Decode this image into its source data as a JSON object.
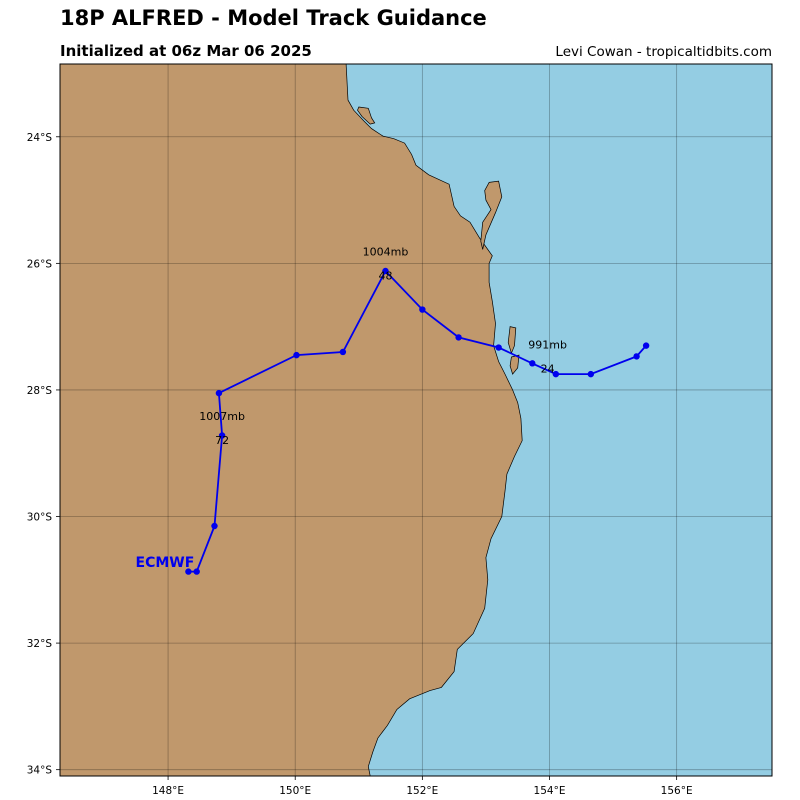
{
  "header": {
    "title": "18P ALFRED - Model Track Guidance",
    "subtitle": "Initialized at 06z Mar 06 2025",
    "credit": "Levi Cowan - tropicaltidbits.com"
  },
  "map": {
    "lon_range": [
      146.3,
      157.5
    ],
    "lat_range": [
      -34.1,
      -22.85
    ],
    "land_color": "#C0986C",
    "ocean_color": "#94CDE3",
    "lon_ticks": [
      {
        "value": 148,
        "label": "148°E"
      },
      {
        "value": 150,
        "label": "150°E"
      },
      {
        "value": 152,
        "label": "152°E"
      },
      {
        "value": 154,
        "label": "154°E"
      },
      {
        "value": 156,
        "label": "156°E"
      }
    ],
    "lat_ticks": [
      {
        "value": -24,
        "label": "24°S"
      },
      {
        "value": -26,
        "label": "26°S"
      },
      {
        "value": -28,
        "label": "28°S"
      },
      {
        "value": -30,
        "label": "30°S"
      },
      {
        "value": -32,
        "label": "32°S"
      },
      {
        "value": -34,
        "label": "34°S"
      }
    ],
    "coastline": [
      [
        150.8,
        -22.85
      ],
      [
        150.83,
        -23.42
      ],
      [
        150.92,
        -23.58
      ],
      [
        151.08,
        -23.75
      ],
      [
        151.2,
        -23.87
      ],
      [
        151.38,
        -23.99
      ],
      [
        151.55,
        -24.03
      ],
      [
        151.72,
        -24.1
      ],
      [
        151.83,
        -24.28
      ],
      [
        151.9,
        -24.45
      ],
      [
        152.1,
        -24.6
      ],
      [
        152.42,
        -24.75
      ],
      [
        152.5,
        -25.1
      ],
      [
        152.6,
        -25.25
      ],
      [
        152.75,
        -25.35
      ],
      [
        152.9,
        -25.6
      ],
      [
        153.1,
        -25.88
      ],
      [
        153.05,
        -26.0
      ],
      [
        153.05,
        -26.3
      ],
      [
        153.1,
        -26.6
      ],
      [
        153.15,
        -26.95
      ],
      [
        153.12,
        -27.3
      ],
      [
        153.2,
        -27.55
      ],
      [
        153.3,
        -27.75
      ],
      [
        153.42,
        -28.0
      ],
      [
        153.5,
        -28.2
      ],
      [
        153.55,
        -28.45
      ],
      [
        153.57,
        -28.8
      ],
      [
        153.45,
        -29.05
      ],
      [
        153.33,
        -29.33
      ],
      [
        153.3,
        -29.6
      ],
      [
        153.25,
        -30.0
      ],
      [
        153.08,
        -30.35
      ],
      [
        153.0,
        -30.65
      ],
      [
        153.03,
        -31.0
      ],
      [
        152.98,
        -31.45
      ],
      [
        152.8,
        -31.85
      ],
      [
        152.55,
        -32.1
      ],
      [
        152.5,
        -32.45
      ],
      [
        152.3,
        -32.7
      ],
      [
        152.12,
        -32.75
      ],
      [
        151.8,
        -32.88
      ],
      [
        151.6,
        -33.05
      ],
      [
        151.45,
        -33.3
      ],
      [
        151.3,
        -33.5
      ],
      [
        151.22,
        -33.72
      ],
      [
        151.15,
        -33.95
      ],
      [
        151.18,
        -34.1
      ]
    ],
    "islands": [
      [
        [
          151.0,
          -23.53
        ],
        [
          151.15,
          -23.55
        ],
        [
          151.2,
          -23.7
        ],
        [
          151.25,
          -23.78
        ],
        [
          151.18,
          -23.8
        ],
        [
          151.05,
          -23.68
        ],
        [
          150.98,
          -23.58
        ]
      ],
      [
        [
          153.05,
          -24.72
        ],
        [
          153.2,
          -24.7
        ],
        [
          153.25,
          -24.95
        ],
        [
          153.15,
          -25.2
        ],
        [
          153.0,
          -25.55
        ],
        [
          152.95,
          -25.78
        ],
        [
          152.92,
          -25.65
        ],
        [
          152.95,
          -25.35
        ],
        [
          153.08,
          -25.15
        ],
        [
          153.0,
          -25.0
        ],
        [
          152.98,
          -24.85
        ]
      ],
      [
        [
          153.38,
          -27.0
        ],
        [
          153.47,
          -27.02
        ],
        [
          153.45,
          -27.3
        ],
        [
          153.4,
          -27.42
        ],
        [
          153.35,
          -27.25
        ]
      ],
      [
        [
          153.4,
          -27.48
        ],
        [
          153.52,
          -27.45
        ],
        [
          153.5,
          -27.65
        ],
        [
          153.42,
          -27.75
        ],
        [
          153.38,
          -27.62
        ]
      ]
    ],
    "tracks": [
      {
        "model": "ECMWF",
        "color": "#0000EE",
        "label_lon": 147.95,
        "label_lat": -30.72,
        "points": [
          [
            155.52,
            -27.3
          ],
          [
            155.37,
            -27.47
          ],
          [
            154.65,
            -27.75
          ],
          [
            154.1,
            -27.75
          ],
          [
            153.73,
            -27.58
          ],
          [
            153.2,
            -27.33
          ],
          [
            152.57,
            -27.17
          ],
          [
            152.0,
            -26.73
          ],
          [
            151.42,
            -26.12
          ],
          [
            150.75,
            -27.4
          ],
          [
            150.02,
            -27.45
          ],
          [
            148.8,
            -28.05
          ],
          [
            148.85,
            -28.72
          ],
          [
            148.73,
            -30.15
          ],
          [
            148.45,
            -30.87
          ],
          [
            148.32,
            -30.87
          ]
        ],
        "annotations": [
          {
            "lon": 153.97,
            "lat": -27.47,
            "pressure": "991mb",
            "hour": "24"
          },
          {
            "lon": 151.42,
            "lat": -26.0,
            "pressure": "1004mb",
            "hour": "48"
          },
          {
            "lon": 148.85,
            "lat": -28.6,
            "pressure": "1007mb",
            "hour": "72"
          }
        ]
      }
    ]
  }
}
